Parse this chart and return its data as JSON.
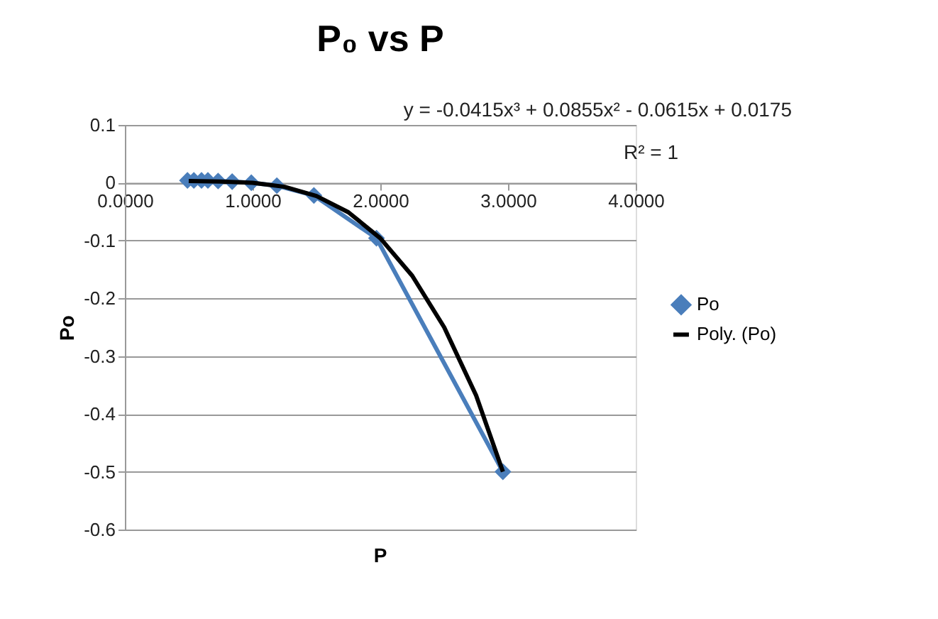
{
  "chart_data": {
    "type": "line",
    "title": "P₀ vs P",
    "xlabel": "P",
    "ylabel": "Po",
    "xlim": [
      0,
      4
    ],
    "xticks": [
      {
        "value": 0,
        "label": "0.0000"
      },
      {
        "value": 1,
        "label": "1.0000"
      },
      {
        "value": 2,
        "label": "2.0000"
      },
      {
        "value": 3,
        "label": "3.0000"
      },
      {
        "value": 4,
        "label": "4.0000"
      }
    ],
    "ylim": [
      -0.6,
      0.1
    ],
    "yticks": [
      0.1,
      0,
      -0.1,
      -0.2,
      -0.3,
      -0.4,
      -0.5,
      -0.6
    ],
    "grid": "y",
    "legend": "right",
    "series": [
      {
        "name": "Po",
        "type": "line",
        "color": "#4a7ebb",
        "marker": "diamond",
        "x": [
          0.49,
          0.54,
          0.6,
          0.65,
          0.73,
          0.84,
          0.99,
          1.19,
          1.48,
          1.97,
          2.96
        ],
        "values": [
          0.004,
          0.004,
          0.004,
          0.004,
          0.003,
          0.002,
          0.0,
          -0.005,
          -0.022,
          -0.096,
          -0.5
        ]
      },
      {
        "name": "Poly. (Po)",
        "type": "line",
        "color": "#000000",
        "marker": "none",
        "x": [
          0.5,
          0.75,
          1.0,
          1.25,
          1.5,
          1.75,
          2.0,
          2.25,
          2.5,
          2.75,
          2.96
        ],
        "values": [
          0.003,
          0.002,
          0.0,
          -0.007,
          -0.023,
          -0.051,
          -0.096,
          -0.161,
          -0.25,
          -0.368,
          -0.5
        ]
      }
    ],
    "annotations": [
      "y = -0.0415x³ + 0.0855x² - 0.0615x + 0.0175",
      "R² = 1"
    ]
  }
}
